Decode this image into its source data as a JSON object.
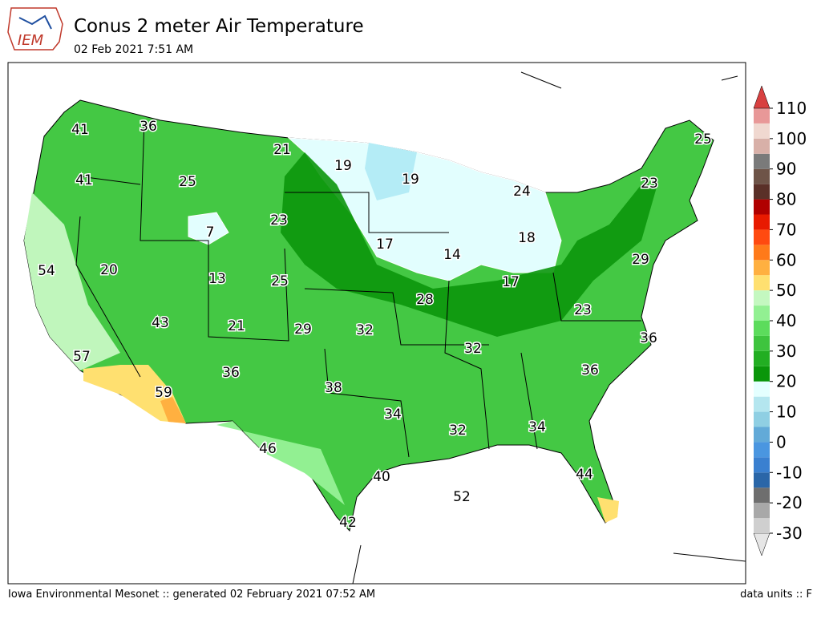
{
  "header": {
    "logo": "IEM",
    "title": "Conus 2 meter Air Temperature",
    "subtitle": "02 Feb 2021 7:51 AM"
  },
  "map_labels": [
    41,
    36,
    21,
    19,
    19,
    25,
    41,
    25,
    23,
    7,
    24,
    18,
    17,
    14,
    23,
    54,
    20,
    13,
    25,
    17,
    28,
    29,
    43,
    21,
    29,
    32,
    32,
    23,
    57,
    36,
    59,
    38,
    36,
    36,
    34,
    46,
    32,
    34,
    40,
    44,
    52,
    42
  ],
  "colorbar": {
    "ticks": [
      -30,
      -20,
      -10,
      0,
      10,
      20,
      30,
      40,
      50,
      60,
      70,
      80,
      90,
      100,
      110
    ],
    "colors": [
      "#e6e6e6",
      "#cfcfcf",
      "#a8a8a8",
      "#6e6e6e",
      "#2a66a8",
      "#3a80d0",
      "#4a96e0",
      "#62aad8",
      "#8fcfe3",
      "#b4e6ef",
      "#e4ffff",
      "#0a960a",
      "#22ae22",
      "#3ec43e",
      "#5cdc5c",
      "#92f092",
      "#c4f8c0",
      "#ffe070",
      "#ffb040",
      "#ff7a1a",
      "#ff4a10",
      "#e81a00",
      "#b00000",
      "#5a3028",
      "#6e5448",
      "#7a7a7a",
      "#d8b0a8",
      "#f0d8d0",
      "#e89898",
      "#d84040"
    ]
  },
  "footer": {
    "left": "Iowa Environmental Mesonet :: generated 02 February 2021 07:52 AM",
    "right": "data units :: F"
  }
}
